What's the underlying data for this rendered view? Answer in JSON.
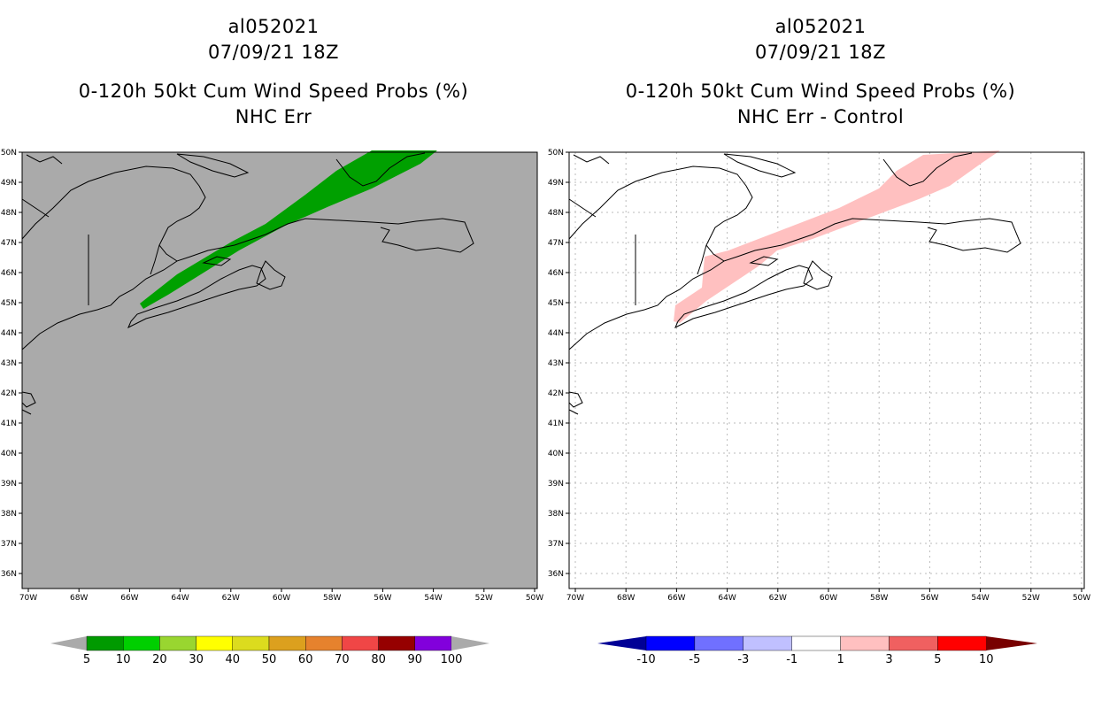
{
  "left_panel": {
    "storm_id": "al052021",
    "datetime": "07/09/21 18Z",
    "product": "0-120h 50kt Cum Wind Speed Probs (%)",
    "subtitle": "NHC Err",
    "background": "#aaaaaa",
    "swath_color": "#00a000"
  },
  "right_panel": {
    "storm_id": "al052021",
    "datetime": "07/09/21 18Z",
    "product": "0-120h 50kt Cum Wind Speed Probs (%)",
    "subtitle": "NHC Err - Control",
    "background": "#ffffff",
    "swath_color": "#ffc0c0",
    "grid": true
  },
  "axes": {
    "lat_labels": [
      "50N",
      "49N",
      "48N",
      "47N",
      "46N",
      "45N",
      "44N",
      "43N",
      "42N",
      "41N",
      "40N",
      "39N",
      "38N",
      "37N",
      "36N"
    ],
    "lon_labels": [
      "70W",
      "68W",
      "66W",
      "64W",
      "62W",
      "60W",
      "58W",
      "56W",
      "54W",
      "52W",
      "50W"
    ]
  },
  "legend_left": {
    "colors": [
      "#009a00",
      "#00cf00",
      "#99d630",
      "#ffff00",
      "#dcdc1e",
      "#dca01e",
      "#e6822d",
      "#f04646",
      "#960000",
      "#8200dc"
    ],
    "labels": [
      "5",
      "10",
      "20",
      "30",
      "40",
      "50",
      "60",
      "70",
      "80",
      "90",
      "100"
    ]
  },
  "legend_right": {
    "colors": [
      "#0000ff",
      "#7070ff",
      "#c0c0ff",
      "#ffffff",
      "#ffc0c0",
      "#f06060",
      "#ff0000"
    ],
    "labels": [
      "-10",
      "-5",
      "-3",
      "-1",
      "1",
      "3",
      "5",
      "10"
    ],
    "left_tip_color": "#000096",
    "right_tip_color": "#780000"
  }
}
